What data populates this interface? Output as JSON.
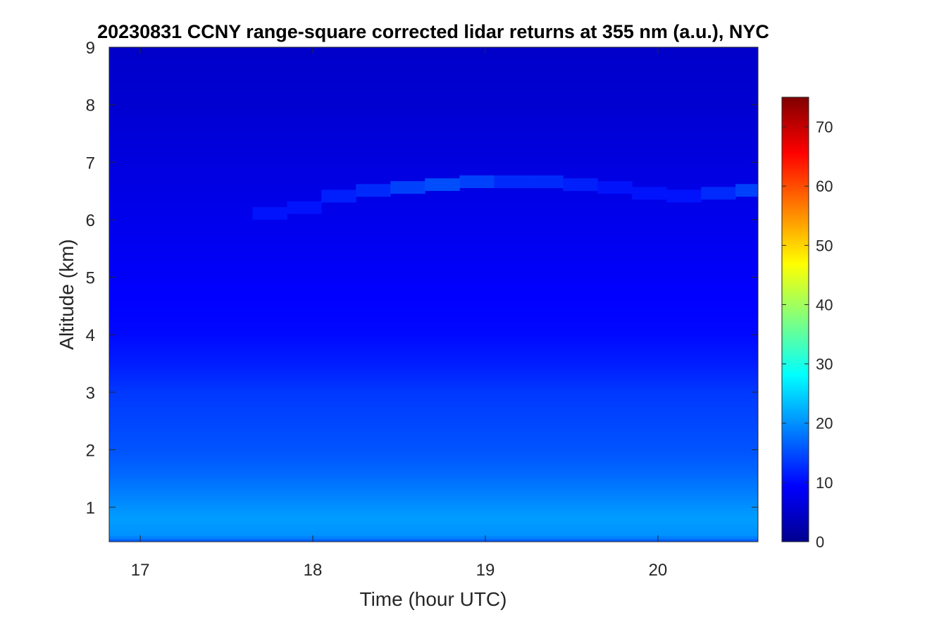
{
  "chart_data": {
    "type": "heatmap",
    "title": "20230831 CCNY range-square corrected lidar returns at 355 nm (a.u.), NYC",
    "xlabel": "Time (hour UTC)",
    "ylabel": "Altitude (km)",
    "xlim": [
      16.82,
      20.58
    ],
    "ylim": [
      0.4,
      9
    ],
    "xticks": [
      17,
      18,
      19,
      20
    ],
    "yticks": [
      1,
      2,
      3,
      4,
      5,
      6,
      7,
      8,
      9
    ],
    "colorbar": {
      "colormap": "jet",
      "clim": [
        0,
        75
      ],
      "ticks": [
        0,
        10,
        20,
        30,
        40,
        50,
        60,
        70
      ]
    },
    "vertical_profile": {
      "altitude_km": [
        0.4,
        0.5,
        0.8,
        1.0,
        1.3,
        1.6,
        2.0,
        2.5,
        3.0,
        3.5,
        4.0,
        4.5,
        5.0,
        5.5,
        6.0,
        6.5,
        7.0,
        8.0,
        9.0
      ],
      "value": [
        15,
        20,
        21,
        20,
        18.5,
        17,
        15.5,
        14.5,
        13.5,
        11.5,
        10,
        9.5,
        9,
        8.5,
        8,
        7.5,
        7,
        6,
        5.5
      ]
    },
    "cloud_layer": {
      "time_hour_utc": [
        17.65,
        17.85,
        18.05,
        18.25,
        18.45,
        18.65,
        18.85,
        19.05,
        19.25,
        19.45,
        19.65,
        19.85,
        20.05,
        20.25,
        20.45,
        20.58
      ],
      "altitude_km": [
        6.1,
        6.2,
        6.4,
        6.5,
        6.55,
        6.6,
        6.65,
        6.65,
        6.65,
        6.6,
        6.55,
        6.45,
        6.4,
        6.45,
        6.5,
        6.5
      ],
      "value": [
        11,
        11,
        12,
        13,
        15,
        16,
        15,
        13,
        13,
        12,
        11,
        11,
        11,
        13,
        15,
        15
      ]
    }
  }
}
